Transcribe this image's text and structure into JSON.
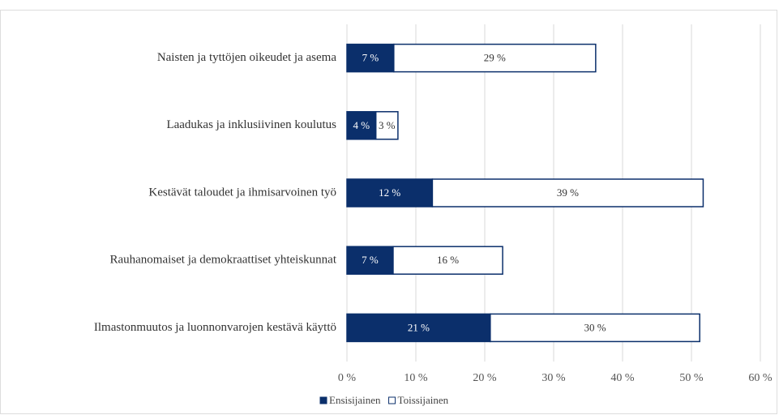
{
  "chart_data": {
    "type": "stacked-barh",
    "categories": [
      "Naisten ja tyttöjen oikeudet ja asema",
      "Laadukas ja inklusiivinen koulutus",
      "Kestävät taloudet ja ihmisarvoinen työ",
      "Rauhanomaiset ja demokraattiset yhteiskunnat",
      "Ilmastonmuutos ja luonnonvarojen kestävä käyttö"
    ],
    "series": [
      {
        "name": "Ensisijainen",
        "color": "#0b2f6b",
        "values": [
          6.8,
          4.2,
          12.4,
          6.7,
          20.8
        ],
        "value_labels": [
          "7 %",
          "4 %",
          "12 %",
          "7 %",
          "21 %"
        ]
      },
      {
        "name": "Toissijainen",
        "color": "#ffffff",
        "values": [
          29.3,
          3.2,
          39.3,
          15.9,
          30.4
        ],
        "value_labels": [
          "29 %",
          "3 %",
          "39 %",
          "16 %",
          "30 %"
        ]
      }
    ],
    "edgecolor": "#0b2f6b",
    "xlim": [
      0,
      60
    ],
    "xticks": [
      {
        "value": 0,
        "label": "0 %"
      },
      {
        "value": 10,
        "label": "10 %"
      },
      {
        "value": 20,
        "label": "20 %"
      },
      {
        "value": 30,
        "label": "30 %"
      },
      {
        "value": 40,
        "label": "40 %"
      },
      {
        "value": 50,
        "label": "50 %"
      },
      {
        "value": 60,
        "label": "60 %"
      }
    ],
    "grid": true,
    "legend": "bottom"
  }
}
